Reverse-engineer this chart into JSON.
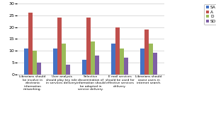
{
  "categories": [
    "Librarians should\nbe involve in\nelectronic\ninformation\nnetworking.",
    "User analysis\nshould play key role\nin services delivery.",
    "Selective\ndissemination of\ninformation should\nbe adopted in\nservice delivery.",
    "E mail services\nshould be used for\neffective services\ndelivery.",
    "Librarians should\nassist users in\ninternet search."
  ],
  "series": {
    "SA": [
      11,
      11,
      6,
      13,
      11
    ],
    "A": [
      26,
      24,
      24,
      20,
      19
    ],
    "D": [
      10,
      13,
      14,
      11,
      13
    ],
    "SD": [
      5,
      4,
      8,
      7,
      9
    ]
  },
  "colors": {
    "SA": "#4472C4",
    "A": "#C0504D",
    "D": "#9BBB59",
    "SD": "#7F5FA5"
  },
  "ylim": [
    0,
    30
  ],
  "yticks": [
    0,
    5,
    10,
    15,
    20,
    25,
    30
  ],
  "legend_labels": [
    "SA",
    "A",
    "D",
    "SD"
  ],
  "bar_width": 0.15,
  "background_color": "#FFFFFF"
}
